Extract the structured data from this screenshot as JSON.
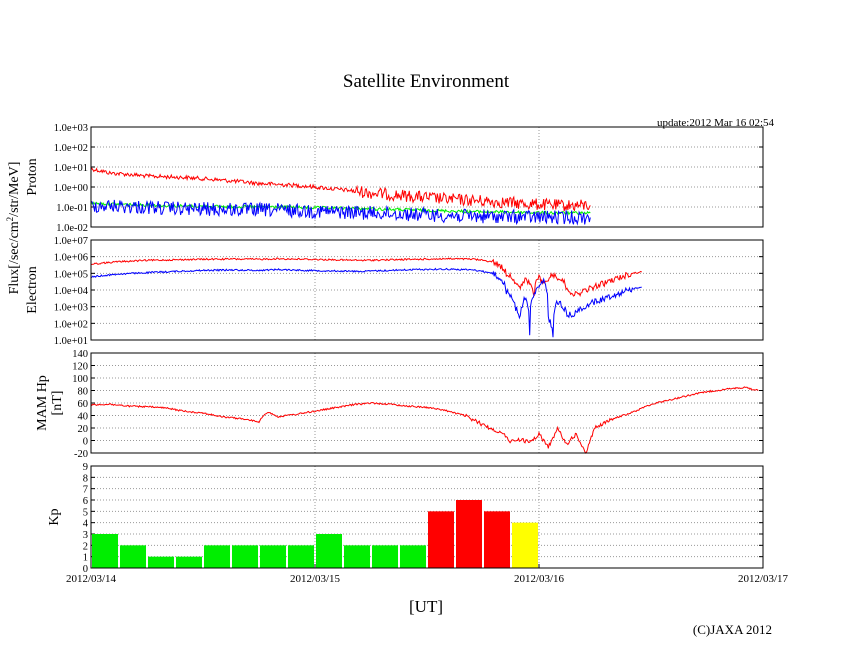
{
  "page": {
    "title": "Satellite Environment",
    "update": "update:2012 Mar 16 02:54",
    "copyright": "(C)JAXA 2012",
    "x_title": "[UT]",
    "flux_label_prefix": "Flux[/sec/cm",
    "flux_label_exp": "2",
    "flux_label_suffix": "/str/MeV]"
  },
  "colors": {
    "red": "#ff0000",
    "blue": "#0000ff",
    "green": "#00ee00",
    "yellow": "#ffff00",
    "grid": "#999999"
  },
  "chart_data": {
    "type": "line",
    "x_axis": {
      "ticks": [
        "2012/03/14",
        "2012/03/15",
        "2012/03/16",
        "2012/03/17"
      ],
      "range_hours": [
        0,
        72
      ],
      "label": "[UT]"
    },
    "panels": [
      {
        "id": "proton",
        "ylabel": "Proton",
        "scale": "log",
        "ylim": [
          0.01,
          1000
        ],
        "ticks": [
          "1.0e+03",
          "1.0e+02",
          "1.0e+01",
          "1.0e+00",
          "1.0e-01",
          "1.0e-02"
        ],
        "series": [
          {
            "name": "proton-high",
            "color": "red",
            "points": [
              [
                0,
                8
              ],
              [
                2,
                5
              ],
              [
                6,
                3.5
              ],
              [
                10,
                3
              ],
              [
                14,
                2.2
              ],
              [
                18,
                1.5
              ],
              [
                22,
                1.2
              ],
              [
                26,
                0.8
              ],
              [
                30,
                0.5
              ],
              [
                34,
                0.35
              ],
              [
                38,
                0.25
              ],
              [
                42,
                0.2
              ],
              [
                46,
                0.15
              ],
              [
                50,
                0.12
              ],
              [
                53.5,
                0.12
              ]
            ]
          },
          {
            "name": "proton-mid",
            "color": "green",
            "points": [
              [
                0,
                0.15
              ],
              [
                10,
                0.11
              ],
              [
                20,
                0.1
              ],
              [
                30,
                0.08
              ],
              [
                40,
                0.06
              ],
              [
                50,
                0.05
              ],
              [
                53.5,
                0.05
              ]
            ]
          },
          {
            "name": "proton-low",
            "color": "blue",
            "points": [
              [
                0,
                0.12
              ],
              [
                10,
                0.08
              ],
              [
                20,
                0.07
              ],
              [
                30,
                0.05
              ],
              [
                40,
                0.035
              ],
              [
                50,
                0.03
              ],
              [
                53.5,
                0.03
              ]
            ]
          }
        ]
      },
      {
        "id": "electron",
        "ylabel": "Electron",
        "scale": "log",
        "ylim": [
          10,
          10000000
        ],
        "ticks": [
          "1.0e+07",
          "1.0e+06",
          "1.0e+05",
          "1.0e+04",
          "1.0e+03",
          "1.0e+02",
          "1.0e+01"
        ],
        "series": [
          {
            "name": "electron-high",
            "color": "red",
            "points": [
              [
                0,
                350000
              ],
              [
                3,
                500000
              ],
              [
                6,
                600000
              ],
              [
                9,
                650000
              ],
              [
                12,
                700000
              ],
              [
                15,
                720000
              ],
              [
                18,
                700000
              ],
              [
                20,
                750000
              ],
              [
                23,
                700000
              ],
              [
                26,
                650000
              ],
              [
                29,
                600000
              ],
              [
                32,
                650000
              ],
              [
                35,
                700000
              ],
              [
                38,
                750000
              ],
              [
                41,
                700000
              ],
              [
                43,
                500000
              ],
              [
                44.5,
                100000
              ],
              [
                45.5,
                30000
              ],
              [
                46,
                10000
              ],
              [
                46.5,
                40000
              ],
              [
                47.5,
                5000
              ],
              [
                48,
                60000
              ],
              [
                48.5,
                20000
              ],
              [
                49.5,
                80000
              ],
              [
                50.5,
                40000
              ],
              [
                51,
                10000
              ],
              [
                52,
                5000
              ],
              [
                53.5,
                12000
              ],
              [
                55,
                25000
              ],
              [
                56.5,
                50000
              ],
              [
                58,
                100000
              ],
              [
                59,
                120000
              ]
            ]
          },
          {
            "name": "electron-low",
            "color": "blue",
            "points": [
              [
                0,
                60000
              ],
              [
                3,
                90000
              ],
              [
                6,
                110000
              ],
              [
                9,
                130000
              ],
              [
                12,
                150000
              ],
              [
                15,
                160000
              ],
              [
                18,
                150000
              ],
              [
                20,
                170000
              ],
              [
                23,
                150000
              ],
              [
                26,
                140000
              ],
              [
                29,
                130000
              ],
              [
                32,
                150000
              ],
              [
                35,
                170000
              ],
              [
                38,
                180000
              ],
              [
                41,
                160000
              ],
              [
                43,
                100000
              ],
              [
                44.5,
                8000
              ],
              [
                45.5,
                800
              ],
              [
                46,
                200
              ],
              [
                46.5,
                3000
              ],
              [
                47,
                15
              ],
              [
                47.5,
                5000
              ],
              [
                48.5,
                30000
              ],
              [
                49,
                200
              ],
              [
                49.5,
                10
              ],
              [
                50,
                2000
              ],
              [
                51,
                300
              ],
              [
                52,
                400
              ],
              [
                53.5,
                1500
              ],
              [
                55,
                3000
              ],
              [
                56.5,
                6000
              ],
              [
                58,
                12000
              ],
              [
                59,
                15000
              ]
            ]
          }
        ]
      },
      {
        "id": "hp",
        "ylabel": "MAM Hp",
        "ylabel2": "[nT]",
        "scale": "linear",
        "ylim": [
          -20,
          140
        ],
        "ticks": [
          "140",
          "120",
          "100",
          "80",
          "60",
          "40",
          "20",
          "0",
          "-20"
        ],
        "series": [
          {
            "name": "mam-hp",
            "color": "red",
            "points": [
              [
                0,
                57
              ],
              [
                2,
                58
              ],
              [
                4,
                55
              ],
              [
                6,
                54
              ],
              [
                8,
                52
              ],
              [
                10,
                47
              ],
              [
                12,
                44
              ],
              [
                14,
                38
              ],
              [
                16,
                35
              ],
              [
                18,
                30
              ],
              [
                18.5,
                40
              ],
              [
                19,
                46
              ],
              [
                20,
                38
              ],
              [
                22,
                42
              ],
              [
                24,
                47
              ],
              [
                26,
                52
              ],
              [
                28,
                57
              ],
              [
                30,
                60
              ],
              [
                32,
                58
              ],
              [
                34,
                55
              ],
              [
                36,
                53
              ],
              [
                38,
                48
              ],
              [
                40,
                40
              ],
              [
                42,
                25
              ],
              [
                44,
                12
              ],
              [
                45,
                -2
              ],
              [
                46,
                2
              ],
              [
                47,
                -3
              ],
              [
                48,
                10
              ],
              [
                49,
                -10
              ],
              [
                50,
                18
              ],
              [
                51,
                -5
              ],
              [
                52,
                10
              ],
              [
                53,
                -22
              ],
              [
                54,
                22
              ],
              [
                55,
                28
              ],
              [
                56,
                35
              ],
              [
                58,
                45
              ],
              [
                60,
                58
              ],
              [
                62,
                65
              ],
              [
                64,
                72
              ],
              [
                66,
                78
              ],
              [
                68,
                82
              ],
              [
                70,
                85
              ],
              [
                71.5,
                80
              ]
            ]
          }
        ]
      },
      {
        "id": "kp",
        "ylabel": "Kp",
        "scale": "linear",
        "ylim": [
          0,
          9
        ],
        "ticks": [
          "9",
          "8",
          "7",
          "6",
          "5",
          "4",
          "3",
          "2",
          "1",
          "0"
        ],
        "type": "bar",
        "bars": [
          {
            "start_hour": 0,
            "value": 3,
            "color": "green"
          },
          {
            "start_hour": 3,
            "value": 2,
            "color": "green"
          },
          {
            "start_hour": 6,
            "value": 1,
            "color": "green"
          },
          {
            "start_hour": 9,
            "value": 1,
            "color": "green"
          },
          {
            "start_hour": 12,
            "value": 2,
            "color": "green"
          },
          {
            "start_hour": 15,
            "value": 2,
            "color": "green"
          },
          {
            "start_hour": 18,
            "value": 2,
            "color": "green"
          },
          {
            "start_hour": 21,
            "value": 2,
            "color": "green"
          },
          {
            "start_hour": 24,
            "value": 3,
            "color": "green"
          },
          {
            "start_hour": 27,
            "value": 2,
            "color": "green"
          },
          {
            "start_hour": 30,
            "value": 2,
            "color": "green"
          },
          {
            "start_hour": 33,
            "value": 2,
            "color": "green"
          },
          {
            "start_hour": 36,
            "value": 5,
            "color": "red"
          },
          {
            "start_hour": 39,
            "value": 6,
            "color": "red"
          },
          {
            "start_hour": 42,
            "value": 5,
            "color": "red"
          },
          {
            "start_hour": 45,
            "value": 4,
            "color": "yellow"
          }
        ]
      }
    ]
  }
}
